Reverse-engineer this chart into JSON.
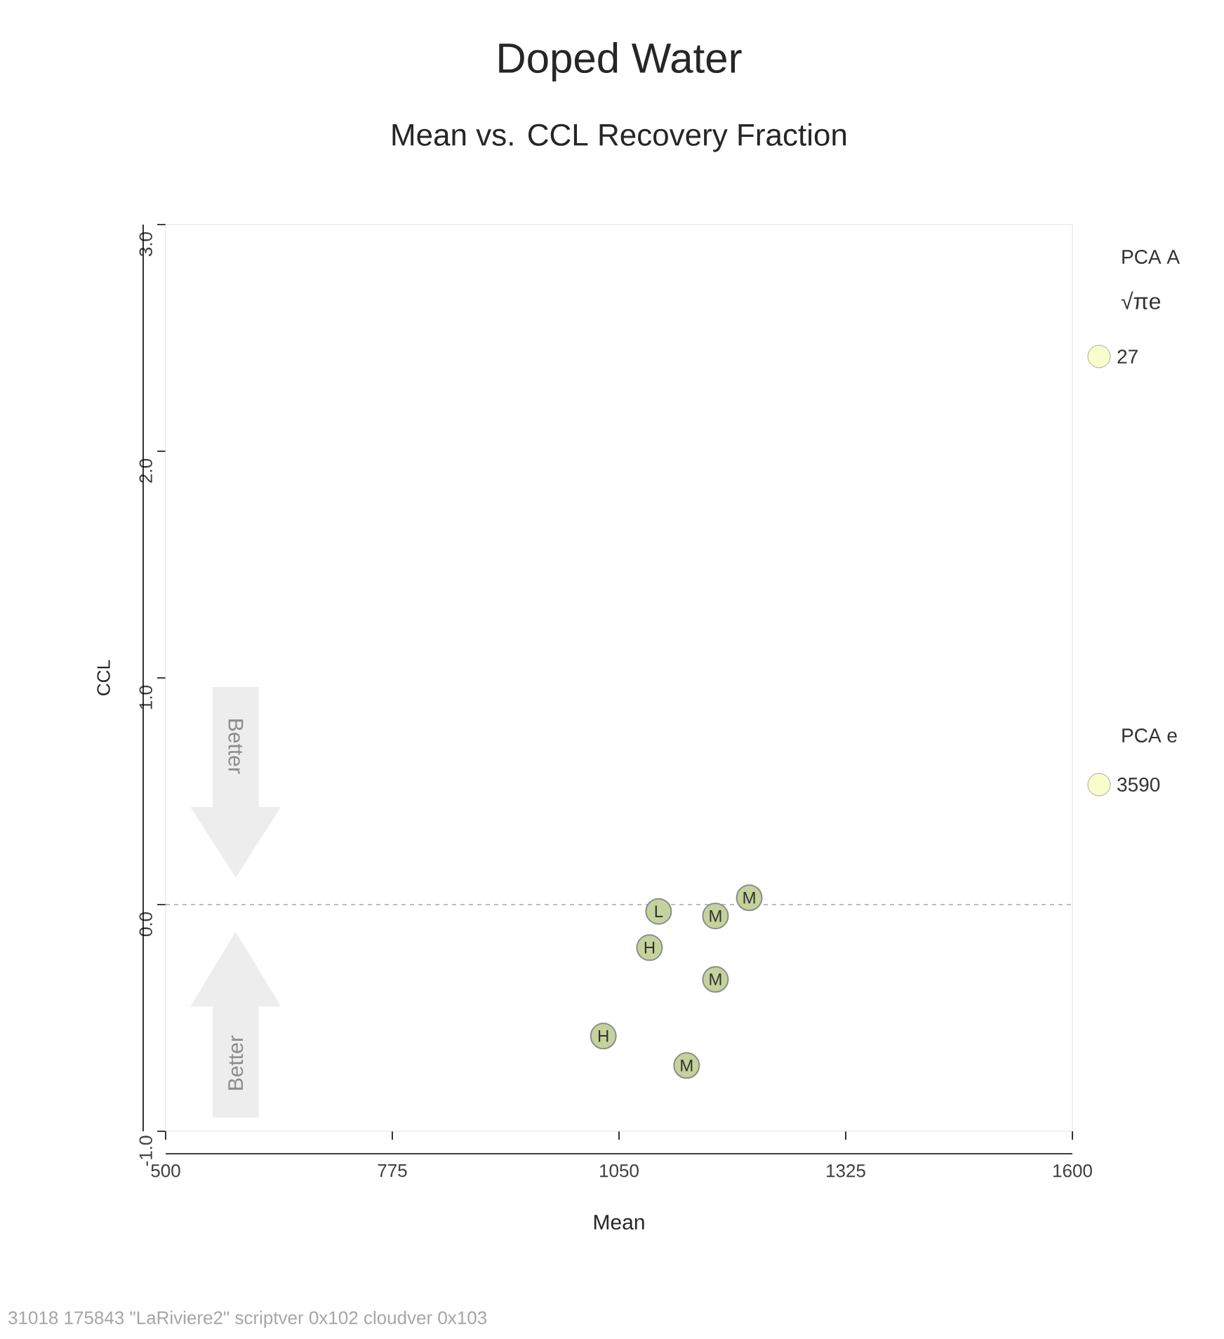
{
  "chart_data": {
    "type": "scatter",
    "title": "Doped Water",
    "subtitle": "Mean vs. CCL Recovery Fraction",
    "xlabel": "Mean",
    "ylabel": "CCL",
    "xlim": [
      500,
      1600
    ],
    "ylim": [
      -1,
      3
    ],
    "xticks": [
      500,
      775,
      1050,
      1325,
      1600
    ],
    "yticks": [
      {
        "value": -1,
        "label": "-1.0"
      },
      {
        "value": 0,
        "label": "0.0"
      },
      {
        "value": 1,
        "label": "1.0"
      },
      {
        "value": 2,
        "label": "2.0"
      },
      {
        "value": 3,
        "label": "3.0"
      }
    ],
    "grid": false,
    "marker": "circle",
    "series": [
      {
        "color": "#c5d29c",
        "x": [
          1098,
          1167,
          1208,
          1087,
          1167,
          1031,
          1132
        ],
        "values": [
          -0.03,
          -0.05,
          0.03,
          -0.19,
          -0.33,
          -0.58,
          -0.71
        ],
        "value_labels": [
          "L",
          "M",
          "M",
          "H",
          "M",
          "H",
          "M"
        ]
      }
    ],
    "ref_lines": [
      {
        "axis": "y",
        "value": 0,
        "line_style": "dashed",
        "color": "#555555"
      }
    ],
    "annotations": [
      "Better",
      "Better",
      "PCA A",
      "√πe",
      "27",
      "PCA e",
      "3590",
      "31018 175843 \"LaRiviere2\" scriptver 0x102  cloudver 0x103"
    ]
  }
}
